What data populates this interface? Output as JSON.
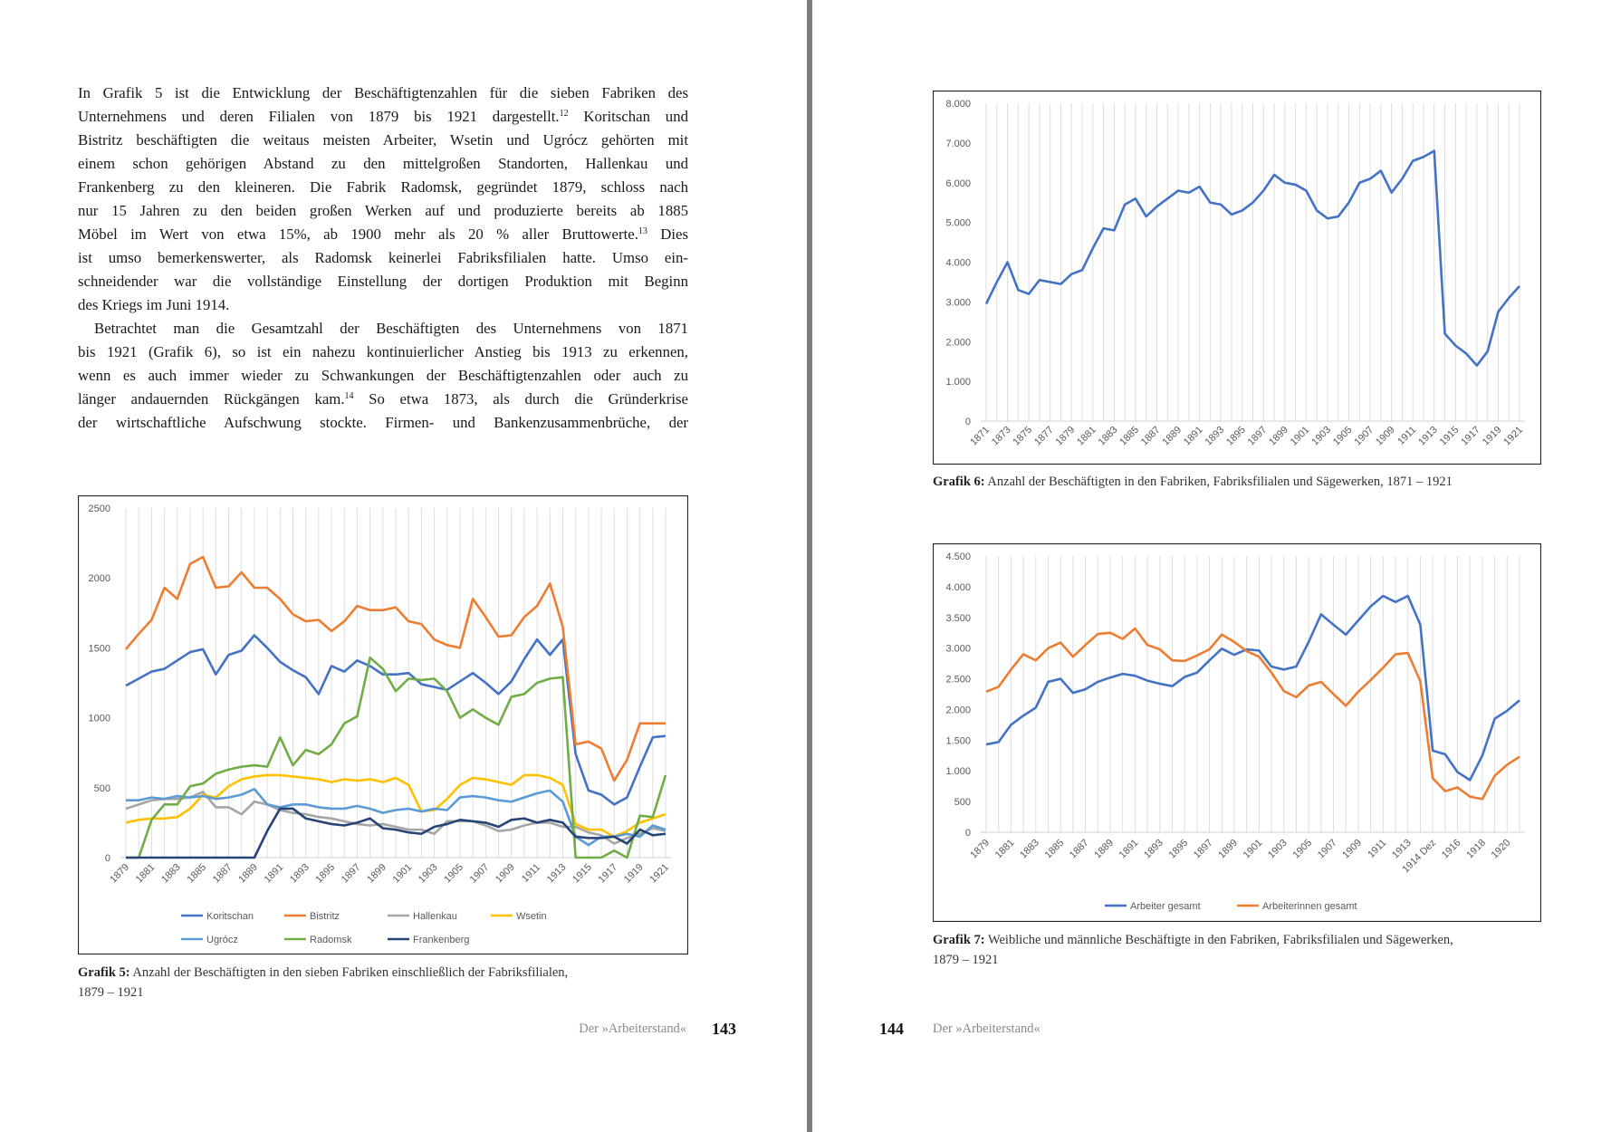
{
  "left_page": {
    "paragraphs": [
      [
        [
          {
            "text": "In Grafik 5 ist die Entwicklung der Beschäftigtenzahlen für die sieben Fabriken des"
          }
        ],
        [
          {
            "text": "Unternehmens und deren Filialen von 1879 bis 1921 dargestellt."
          },
          {
            "note": "12"
          },
          {
            "text": " Koritschan und"
          }
        ],
        [
          {
            "text": "Bistritz beschäftigten die weitaus meisten Arbeiter, Wsetin und Ugrócz gehörten mit"
          }
        ],
        [
          {
            "text": "einem schon gehörigen Abstand zu den mittelgroßen Standorten, Hallenkau und"
          }
        ],
        [
          {
            "text": "Frankenberg zu den kleineren. Die Fabrik Radomsk, gegründet 1879, schloss nach"
          }
        ],
        [
          {
            "text": "nur 15 Jahren zu den beiden großen Werken auf und produzierte bereits ab 1885"
          }
        ],
        [
          {
            "text": "Möbel im Wert von etwa 15%, ab 1900 mehr als 20 % aller Bruttowerte."
          },
          {
            "note": "13"
          },
          {
            "text": " Dies"
          }
        ],
        [
          {
            "text": "ist umso bemerkenswerter, als Radomsk keinerlei Fabriksfilialen hatte. Umso ein-"
          }
        ],
        [
          {
            "text": "schneidender war die vollständige Einstellung der dortigen Produktion mit Beginn"
          }
        ],
        [
          {
            "text": "des Kriegs im Juni 1914."
          }
        ]
      ],
      [
        [
          {
            "text": "Betrachtet man die Gesamtzahl der Beschäftigten des Unternehmens von 1871"
          }
        ],
        [
          {
            "text": "bis 1921 (Grafik 6), so ist ein nahezu kontinuierlicher Anstieg bis 1913 zu erkennen,"
          }
        ],
        [
          {
            "text": "wenn es auch immer wieder zu Schwankungen der Beschäftigtenzahlen oder auch zu"
          }
        ],
        [
          {
            "text": "länger andauernden Rückgängen kam."
          },
          {
            "note": "14"
          },
          {
            "text": " So etwa 1873, als durch die Gründerkrise"
          }
        ],
        [
          {
            "text": "der wirtschaftliche Aufschwung stockte. Firmen- und Bankenzusammenbrüche, der"
          }
        ]
      ]
    ],
    "caption": {
      "label": "Grafik 5:",
      "lines": [
        " Anzahl der Beschäftigten in den sieben Fabriken einschließlich der Fabriksfilialen,",
        "1879 – 1921"
      ]
    },
    "running_head": "Der »Arbeiterstand«",
    "page_number": 143
  },
  "right_page": {
    "captions": [
      {
        "label": "Grafik 6:",
        "lines": [
          " Anzahl der Beschäftigten in den Fabriken, Fabriksfilialen und Sägewerken, 1871 – 1921"
        ]
      },
      {
        "label": "Grafik 7:",
        "lines": [
          " Weibliche und männliche Beschäftigte in den Fabriken, Fabriksfilialen und Sägewerken,",
          "1879 – 1921"
        ]
      }
    ],
    "running_head": "Der »Arbeiterstand«",
    "page_number": 144
  },
  "chart_data": [
    {
      "type": "line",
      "grid": "vertical",
      "legend": "bottom",
      "categories": [
        "1879",
        null,
        "1881",
        null,
        "1883",
        null,
        "1885",
        null,
        "1887",
        null,
        "1889",
        null,
        "1891",
        null,
        "1893",
        null,
        "1895",
        null,
        "1897",
        null,
        "1899",
        null,
        "1901",
        null,
        "1903",
        null,
        "1905",
        null,
        "1907",
        null,
        "1909",
        null,
        "1911",
        null,
        "1913",
        null,
        "1915",
        null,
        "1917",
        null,
        "1919",
        null,
        "1921"
      ],
      "ylim": [
        0,
        2500
      ],
      "yticks": [
        0,
        500,
        1000,
        1500,
        2000,
        2500
      ],
      "series": [
        {
          "name": "Koritschan",
          "color": "#4472c4",
          "values": [
            1230,
            1280,
            1330,
            1350,
            1410,
            1470,
            1490,
            1310,
            1450,
            1480,
            1590,
            1500,
            1400,
            1340,
            1290,
            1170,
            1370,
            1330,
            1410,
            1370,
            1310,
            1310,
            1320,
            1240,
            1220,
            1200,
            1260,
            1320,
            1250,
            1170,
            1260,
            1420,
            1560,
            1450,
            1560,
            740,
            480,
            450,
            380,
            430,
            650,
            860,
            870
          ]
        },
        {
          "name": "Bistritz",
          "color": "#ed7d31",
          "values": [
            1490,
            1600,
            1700,
            1930,
            1850,
            2100,
            2150,
            1930,
            1940,
            2040,
            1930,
            1930,
            1850,
            1740,
            1690,
            1700,
            1620,
            1690,
            1800,
            1770,
            1770,
            1790,
            1690,
            1670,
            1560,
            1520,
            1500,
            1850,
            1720,
            1580,
            1590,
            1720,
            1800,
            1960,
            1650,
            810,
            830,
            780,
            550,
            700,
            960,
            960,
            960
          ]
        },
        {
          "name": "Hallenkau",
          "color": "#a5a5a5",
          "values": [
            350,
            380,
            410,
            420,
            420,
            430,
            470,
            360,
            360,
            310,
            400,
            380,
            340,
            320,
            310,
            290,
            280,
            260,
            240,
            230,
            240,
            220,
            200,
            200,
            170,
            260,
            260,
            260,
            230,
            190,
            200,
            230,
            250,
            250,
            220,
            220,
            180,
            160,
            100,
            140,
            170,
            210,
            190
          ]
        },
        {
          "name": "Wsetin",
          "color": "#ffc000",
          "values": [
            250,
            270,
            280,
            280,
            290,
            350,
            450,
            430,
            510,
            560,
            580,
            590,
            590,
            580,
            570,
            560,
            540,
            560,
            550,
            560,
            540,
            570,
            520,
            330,
            340,
            420,
            520,
            570,
            560,
            540,
            520,
            590,
            590,
            570,
            520,
            240,
            200,
            200,
            150,
            190,
            250,
            280,
            310
          ]
        },
        {
          "name": "Ugrócz",
          "color": "#5b9bd5",
          "values": [
            410,
            410,
            430,
            420,
            440,
            430,
            440,
            420,
            430,
            450,
            490,
            380,
            360,
            380,
            380,
            360,
            350,
            350,
            370,
            350,
            320,
            340,
            350,
            330,
            350,
            340,
            430,
            440,
            430,
            410,
            400,
            430,
            460,
            480,
            400,
            150,
            90,
            150,
            150,
            170,
            150,
            230,
            200
          ]
        },
        {
          "name": "Radomsk",
          "color": "#70ad47",
          "values": [
            0,
            0,
            270,
            380,
            380,
            510,
            530,
            600,
            630,
            650,
            660,
            650,
            860,
            660,
            770,
            740,
            810,
            960,
            1010,
            1430,
            1350,
            1190,
            1280,
            1270,
            1280,
            1190,
            1000,
            1060,
            1000,
            950,
            1150,
            1170,
            1250,
            1280,
            1290,
            0,
            0,
            0,
            50,
            0,
            300,
            290,
            590
          ]
        },
        {
          "name": "Frankenberg",
          "color": "#264478",
          "values": [
            0,
            0,
            0,
            0,
            0,
            0,
            0,
            0,
            0,
            0,
            0,
            190,
            350,
            350,
            280,
            260,
            240,
            230,
            250,
            280,
            210,
            200,
            180,
            170,
            220,
            240,
            270,
            260,
            250,
            220,
            270,
            280,
            250,
            270,
            250,
            150,
            140,
            140,
            150,
            100,
            200,
            160,
            170
          ]
        }
      ]
    },
    {
      "type": "line",
      "grid": "vertical",
      "color": "#4472c4",
      "categories": [
        "1871",
        null,
        "1873",
        null,
        "1875",
        null,
        "1877",
        null,
        "1879",
        null,
        "1881",
        null,
        "1883",
        null,
        "1885",
        null,
        "1887",
        null,
        "1889",
        null,
        "1891",
        null,
        "1893",
        null,
        "1895",
        null,
        "1897",
        null,
        "1899",
        null,
        "1901",
        null,
        "1903",
        null,
        "1905",
        null,
        "1907",
        null,
        "1909",
        null,
        "1911",
        null,
        "1913",
        null,
        "1915",
        null,
        "1917",
        null,
        "1919",
        null,
        "1921"
      ],
      "values": [
        2950,
        3500,
        4000,
        3300,
        3200,
        3550,
        3500,
        3450,
        3700,
        3800,
        4350,
        4850,
        4800,
        5450,
        5600,
        5150,
        5400,
        5600,
        5800,
        5750,
        5900,
        5500,
        5450,
        5200,
        5300,
        5500,
        5800,
        6200,
        6000,
        5950,
        5800,
        5300,
        5100,
        5150,
        5500,
        6000,
        6100,
        6300,
        5750,
        6100,
        6550,
        6650,
        6800,
        2200,
        1900,
        1700,
        1400,
        1750,
        2750,
        3100,
        3400
      ],
      "ylim": [
        0,
        8000
      ],
      "yticks": [
        0,
        {
          "value": 1000,
          "label": "1.000"
        },
        {
          "value": 2000,
          "label": "2.000"
        },
        {
          "value": 3000,
          "label": "3.000"
        },
        {
          "value": 4000,
          "label": "4.000"
        },
        {
          "value": 5000,
          "label": "5.000"
        },
        {
          "value": 6000,
          "label": "6.000"
        },
        {
          "value": 7000,
          "label": "7.000"
        },
        {
          "value": 8000,
          "label": "8.000"
        }
      ]
    },
    {
      "type": "line",
      "grid": "vertical",
      "legend": "bottom",
      "categories": [
        "1879",
        null,
        "1881",
        null,
        "1883",
        null,
        "1885",
        null,
        "1887",
        null,
        "1889",
        null,
        "1891",
        null,
        "1893",
        null,
        "1895",
        null,
        "1897",
        null,
        "1899",
        null,
        "1901",
        null,
        "1903",
        null,
        "1905",
        null,
        "1907",
        null,
        "1909",
        null,
        "1911",
        null,
        "1913",
        null,
        "1914 Dez",
        null,
        "1916",
        null,
        "1918",
        null,
        "1920",
        null
      ],
      "ylim": [
        0,
        4500
      ],
      "yticks": [
        0,
        500,
        {
          "value": 1000,
          "label": "1.000"
        },
        {
          "value": 1500,
          "label": "1.500"
        },
        {
          "value": 2000,
          "label": "2.000"
        },
        {
          "value": 2500,
          "label": "2.500"
        },
        {
          "value": 3000,
          "label": "3.000"
        },
        {
          "value": 3500,
          "label": "3.500"
        },
        {
          "value": 4000,
          "label": "4.000"
        },
        {
          "value": 4500,
          "label": "4.500"
        }
      ],
      "series": [
        {
          "name": "Arbeiter gesamt",
          "color": "#4472c4",
          "values": [
            1430,
            1470,
            1750,
            1900,
            2030,
            2450,
            2500,
            2270,
            2330,
            2450,
            2520,
            2580,
            2550,
            2470,
            2420,
            2380,
            2530,
            2600,
            2800,
            2990,
            2890,
            2980,
            2960,
            2700,
            2650,
            2700,
            3100,
            3550,
            3380,
            3220,
            3450,
            3680,
            3850,
            3750,
            3850,
            3380,
            1330,
            1270,
            980,
            850,
            1250,
            1850,
            1980,
            2150
          ]
        },
        {
          "name": "Arbeiterinnen gesamt",
          "color": "#ed7d31",
          "values": [
            2290,
            2370,
            2650,
            2900,
            2800,
            3000,
            3090,
            2860,
            3050,
            3230,
            3250,
            3150,
            3320,
            3050,
            2980,
            2800,
            2790,
            2880,
            2980,
            3220,
            3100,
            2950,
            2860,
            2600,
            2300,
            2200,
            2390,
            2450,
            2250,
            2060,
            2290,
            2480,
            2680,
            2900,
            2920,
            2460,
            880,
            670,
            730,
            580,
            540,
            920,
            1100,
            1230
          ]
        }
      ]
    }
  ]
}
